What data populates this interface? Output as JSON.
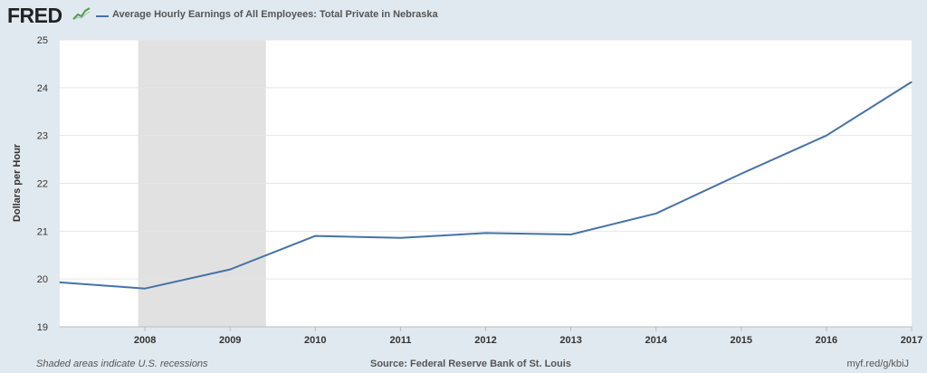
{
  "header": {
    "logo": "FRED",
    "legend_label": "Average Hourly Earnings of All Employees: Total Private in Nebraska"
  },
  "colors": {
    "background": "#e1e9f0",
    "plot_background": "#ffffff",
    "line": "#4572a7",
    "recession": "#e1e1e1",
    "logo_graph": "#4f9c4f"
  },
  "footer": {
    "recession_note": "Shaded areas indicate U.S. recessions",
    "source": "Source: Federal Reserve Bank of St. Louis",
    "short_url": "myf.red/g/kbiJ"
  },
  "chart_data": {
    "type": "line",
    "title": "",
    "xlabel": "",
    "ylabel": "Dollars per Hour",
    "xlim": [
      2007.0,
      2017.0
    ],
    "ylim": [
      19,
      25
    ],
    "y_ticks": [
      19,
      20,
      21,
      22,
      23,
      24,
      25
    ],
    "x_ticks": [
      "2008",
      "2009",
      "2010",
      "2011",
      "2012",
      "2013",
      "2014",
      "2015",
      "2016",
      "2017"
    ],
    "grid": "horizontal",
    "legend_position": "top-left",
    "recession_shading": [
      {
        "start": 2007.92,
        "end": 2009.42
      }
    ],
    "series": [
      {
        "name": "Average Hourly Earnings of All Employees: Total Private in Nebraska",
        "x": [
          2007,
          2008,
          2009,
          2010,
          2011,
          2012,
          2013,
          2014,
          2015,
          2016,
          2017
        ],
        "values": [
          19.93,
          19.8,
          20.2,
          20.9,
          20.86,
          20.96,
          20.93,
          21.37,
          22.2,
          23.0,
          24.12
        ]
      }
    ]
  }
}
